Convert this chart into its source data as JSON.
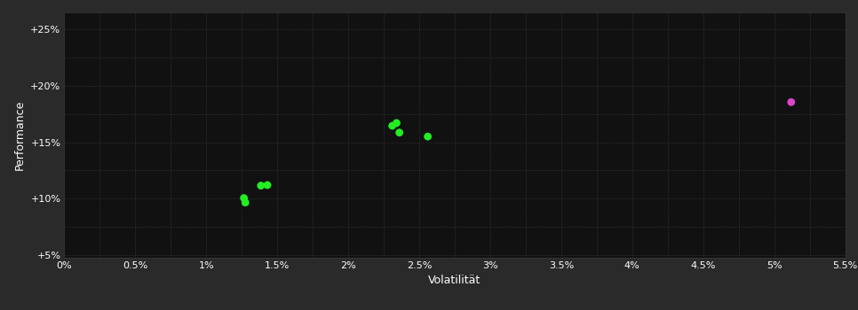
{
  "background_color": "#2a2a2a",
  "plot_bg_color": "#111111",
  "grid_color": "#3a3a3a",
  "text_color": "#ffffff",
  "xlabel": "Volatilität",
  "ylabel": "Performance",
  "xlim": [
    0.0,
    0.055
  ],
  "ylim": [
    0.048,
    0.265
  ],
  "xticks": [
    0.0,
    0.005,
    0.01,
    0.015,
    0.02,
    0.025,
    0.03,
    0.035,
    0.04,
    0.045,
    0.05,
    0.055
  ],
  "xtick_labels": [
    "0%",
    "0.5%",
    "1%",
    "1.5%",
    "2%",
    "2.5%",
    "3%",
    "3.5%",
    "4%",
    "4.5%",
    "5%",
    "5.5%"
  ],
  "yticks": [
    0.05,
    0.1,
    0.15,
    0.2,
    0.25
  ],
  "ytick_labels": [
    "+5%",
    "+10%",
    "+15%",
    "+20%",
    "+25%"
  ],
  "green_points": [
    [
      0.01265,
      0.1005
    ],
    [
      0.01275,
      0.0965
    ],
    [
      0.01385,
      0.1115
    ],
    [
      0.0143,
      0.112
    ],
    [
      0.0231,
      0.1645
    ],
    [
      0.0234,
      0.167
    ],
    [
      0.0236,
      0.1585
    ],
    [
      0.0256,
      0.155
    ]
  ],
  "magenta_points": [
    [
      0.0512,
      0.1855
    ]
  ],
  "green_color": "#22ee22",
  "magenta_color": "#dd44cc",
  "marker_size": 40,
  "font_size_ticks": 8,
  "font_size_label": 9
}
